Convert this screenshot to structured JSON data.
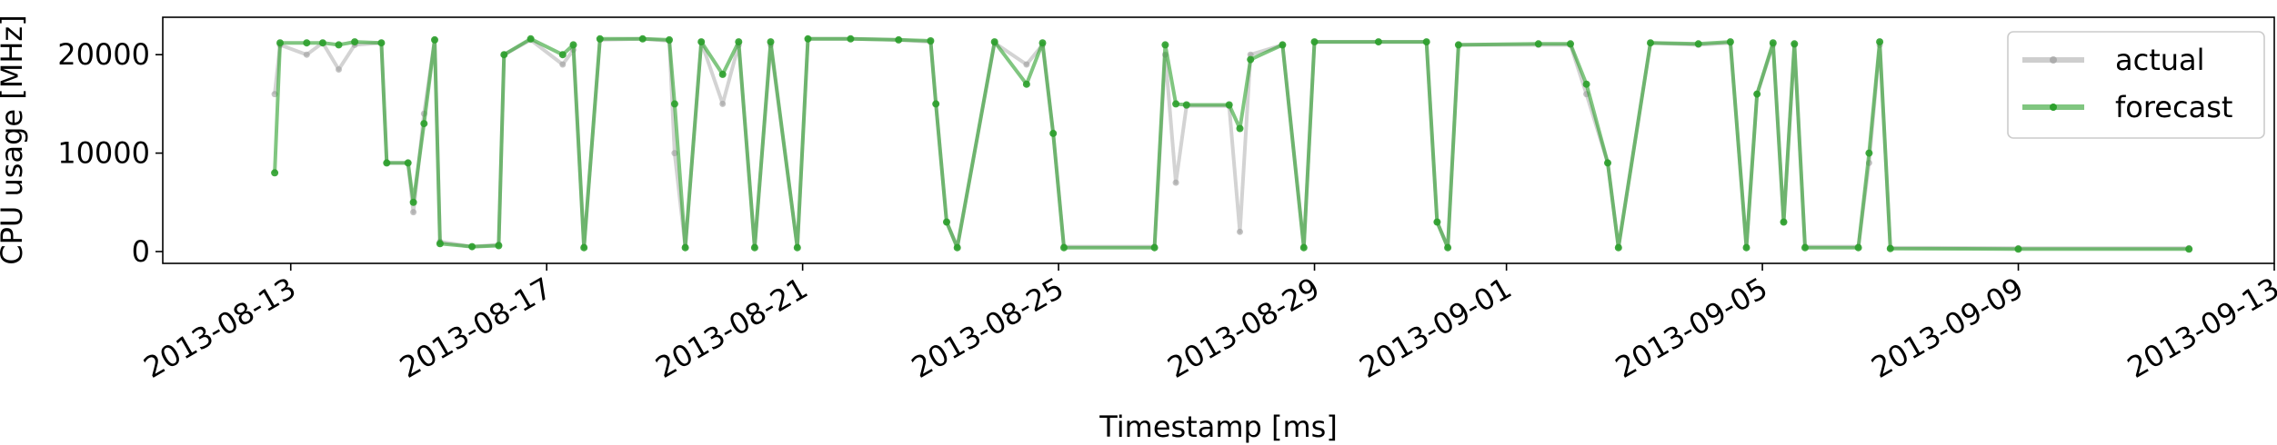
{
  "chart_data": {
    "type": "line",
    "xlabel": "Timestamp [ms]",
    "ylabel": "CPU usage [MHz]",
    "ylim": [
      -1200,
      23800
    ],
    "xlim": [
      "2013-08-11",
      "2013-09-13"
    ],
    "grid": false,
    "legend_position": "top-right",
    "yticks": [
      0,
      10000,
      20000
    ],
    "ytick_labels": [
      "0",
      "10000",
      "20000"
    ],
    "xticks": [
      "2013-08-13",
      "2013-08-17",
      "2013-08-21",
      "2013-08-25",
      "2013-08-29",
      "2013-09-01",
      "2013-09-05",
      "2013-09-09",
      "2013-09-13"
    ],
    "xtick_labels": [
      "2013-08-13",
      "2013-08-17",
      "2013-08-21",
      "2013-08-25",
      "2013-08-29",
      "2013-09-01",
      "2013-09-05",
      "2013-09-09",
      "2013-09-13"
    ],
    "series": [
      {
        "name": "actual",
        "color": "#9e9e9e",
        "points": [
          [
            "2013-08-12T18:00",
            16000
          ],
          [
            "2013-08-12T20:00",
            21000
          ],
          [
            "2013-08-13T06:00",
            20000
          ],
          [
            "2013-08-13T12:00",
            21200
          ],
          [
            "2013-08-13T18:00",
            18500
          ],
          [
            "2013-08-14T00:00",
            21000
          ],
          [
            "2013-08-14T10:00",
            21200
          ],
          [
            "2013-08-14T12:00",
            9000
          ],
          [
            "2013-08-14T20:00",
            9000
          ],
          [
            "2013-08-14T22:00",
            4000
          ],
          [
            "2013-08-15T02:00",
            14000
          ],
          [
            "2013-08-15T06:00",
            21500
          ],
          [
            "2013-08-15T08:00",
            1000
          ],
          [
            "2013-08-15T20:00",
            500
          ],
          [
            "2013-08-16T06:00",
            700
          ],
          [
            "2013-08-16T08:00",
            20000
          ],
          [
            "2013-08-16T18:00",
            21500
          ],
          [
            "2013-08-17T06:00",
            19000
          ],
          [
            "2013-08-17T10:00",
            20500
          ],
          [
            "2013-08-17T14:00",
            500
          ],
          [
            "2013-08-17T20:00",
            21500
          ],
          [
            "2013-08-18T12:00",
            21600
          ],
          [
            "2013-08-18T22:00",
            21400
          ],
          [
            "2013-08-19T00:00",
            10000
          ],
          [
            "2013-08-19T04:00",
            500
          ],
          [
            "2013-08-19T10:00",
            21300
          ],
          [
            "2013-08-19T18:00",
            15000
          ],
          [
            "2013-08-20T00:00",
            21000
          ],
          [
            "2013-08-20T06:00",
            500
          ],
          [
            "2013-08-20T12:00",
            21000
          ],
          [
            "2013-08-20T22:00",
            500
          ],
          [
            "2013-08-21T02:00",
            21600
          ],
          [
            "2013-08-21T18:00",
            21600
          ],
          [
            "2013-08-22T12:00",
            21500
          ],
          [
            "2013-08-23T00:00",
            21300
          ],
          [
            "2013-08-23T02:00",
            15000
          ],
          [
            "2013-08-23T06:00",
            3000
          ],
          [
            "2013-08-23T10:00",
            500
          ],
          [
            "2013-08-24T00:00",
            21200
          ],
          [
            "2013-08-24T12:00",
            19000
          ],
          [
            "2013-08-24T18:00",
            21000
          ],
          [
            "2013-08-24T22:00",
            12000
          ],
          [
            "2013-08-25T02:00",
            500
          ],
          [
            "2013-08-26T12:00",
            500
          ],
          [
            "2013-08-26T16:00",
            20000
          ],
          [
            "2013-08-26T20:00",
            7000
          ],
          [
            "2013-08-27T00:00",
            14800
          ],
          [
            "2013-08-27T16:00",
            14800
          ],
          [
            "2013-08-27T20:00",
            2000
          ],
          [
            "2013-08-28T00:00",
            20000
          ],
          [
            "2013-08-28T12:00",
            21000
          ],
          [
            "2013-08-28T20:00",
            500
          ],
          [
            "2013-08-29T00:00",
            21300
          ],
          [
            "2013-08-30T00:00",
            21300
          ],
          [
            "2013-08-30T18:00",
            21300
          ],
          [
            "2013-08-30T22:00",
            3000
          ],
          [
            "2013-08-31T02:00",
            500
          ],
          [
            "2013-08-31T06:00",
            21000
          ],
          [
            "2013-09-01T12:00",
            21000
          ],
          [
            "2013-09-02T00:00",
            21000
          ],
          [
            "2013-09-02T06:00",
            16000
          ],
          [
            "2013-09-02T14:00",
            9000
          ],
          [
            "2013-09-02T18:00",
            500
          ],
          [
            "2013-09-03T06:00",
            21200
          ],
          [
            "2013-09-04T00:00",
            21000
          ],
          [
            "2013-09-04T12:00",
            21200
          ],
          [
            "2013-09-04T18:00",
            500
          ],
          [
            "2013-09-04T22:00",
            16000
          ],
          [
            "2013-09-05T04:00",
            21000
          ],
          [
            "2013-09-05T08:00",
            3000
          ],
          [
            "2013-09-05T12:00",
            21000
          ],
          [
            "2013-09-05T16:00",
            500
          ],
          [
            "2013-09-06T12:00",
            500
          ],
          [
            "2013-09-06T16:00",
            9000
          ],
          [
            "2013-09-06T20:00",
            21000
          ],
          [
            "2013-09-07T00:00",
            400
          ],
          [
            "2013-09-09T00:00",
            350
          ],
          [
            "2013-09-11T16:00",
            350
          ]
        ]
      },
      {
        "name": "forecast",
        "color": "#2ca02c",
        "points": [
          [
            "2013-08-12T18:00",
            8000
          ],
          [
            "2013-08-12T20:00",
            21200
          ],
          [
            "2013-08-13T06:00",
            21200
          ],
          [
            "2013-08-13T12:00",
            21200
          ],
          [
            "2013-08-13T18:00",
            21000
          ],
          [
            "2013-08-14T00:00",
            21300
          ],
          [
            "2013-08-14T10:00",
            21200
          ],
          [
            "2013-08-14T12:00",
            9000
          ],
          [
            "2013-08-14T20:00",
            9000
          ],
          [
            "2013-08-14T22:00",
            5000
          ],
          [
            "2013-08-15T02:00",
            13000
          ],
          [
            "2013-08-15T06:00",
            21500
          ],
          [
            "2013-08-15T08:00",
            800
          ],
          [
            "2013-08-15T20:00",
            500
          ],
          [
            "2013-08-16T06:00",
            600
          ],
          [
            "2013-08-16T08:00",
            20000
          ],
          [
            "2013-08-16T18:00",
            21600
          ],
          [
            "2013-08-17T06:00",
            20000
          ],
          [
            "2013-08-17T10:00",
            21000
          ],
          [
            "2013-08-17T14:00",
            400
          ],
          [
            "2013-08-17T20:00",
            21600
          ],
          [
            "2013-08-18T12:00",
            21600
          ],
          [
            "2013-08-18T22:00",
            21500
          ],
          [
            "2013-08-19T00:00",
            15000
          ],
          [
            "2013-08-19T04:00",
            400
          ],
          [
            "2013-08-19T10:00",
            21300
          ],
          [
            "2013-08-19T18:00",
            18000
          ],
          [
            "2013-08-20T00:00",
            21300
          ],
          [
            "2013-08-20T06:00",
            400
          ],
          [
            "2013-08-20T12:00",
            21300
          ],
          [
            "2013-08-20T22:00",
            400
          ],
          [
            "2013-08-21T02:00",
            21600
          ],
          [
            "2013-08-21T18:00",
            21600
          ],
          [
            "2013-08-22T12:00",
            21500
          ],
          [
            "2013-08-23T00:00",
            21400
          ],
          [
            "2013-08-23T02:00",
            15000
          ],
          [
            "2013-08-23T06:00",
            3000
          ],
          [
            "2013-08-23T10:00",
            400
          ],
          [
            "2013-08-24T00:00",
            21300
          ],
          [
            "2013-08-24T12:00",
            17000
          ],
          [
            "2013-08-24T18:00",
            21200
          ],
          [
            "2013-08-24T22:00",
            12000
          ],
          [
            "2013-08-25T02:00",
            400
          ],
          [
            "2013-08-26T12:00",
            400
          ],
          [
            "2013-08-26T16:00",
            21000
          ],
          [
            "2013-08-26T20:00",
            15000
          ],
          [
            "2013-08-27T00:00",
            14900
          ],
          [
            "2013-08-27T16:00",
            14900
          ],
          [
            "2013-08-27T20:00",
            12500
          ],
          [
            "2013-08-28T00:00",
            19500
          ],
          [
            "2013-08-28T12:00",
            21000
          ],
          [
            "2013-08-28T20:00",
            400
          ],
          [
            "2013-08-29T00:00",
            21300
          ],
          [
            "2013-08-30T00:00",
            21300
          ],
          [
            "2013-08-30T18:00",
            21300
          ],
          [
            "2013-08-30T22:00",
            3000
          ],
          [
            "2013-08-31T02:00",
            400
          ],
          [
            "2013-08-31T06:00",
            21000
          ],
          [
            "2013-09-01T12:00",
            21100
          ],
          [
            "2013-09-02T00:00",
            21100
          ],
          [
            "2013-09-02T06:00",
            17000
          ],
          [
            "2013-09-02T14:00",
            9000
          ],
          [
            "2013-09-02T18:00",
            400
          ],
          [
            "2013-09-03T06:00",
            21200
          ],
          [
            "2013-09-04T00:00",
            21100
          ],
          [
            "2013-09-04T12:00",
            21300
          ],
          [
            "2013-09-04T18:00",
            400
          ],
          [
            "2013-09-04T22:00",
            16000
          ],
          [
            "2013-09-05T04:00",
            21200
          ],
          [
            "2013-09-05T08:00",
            3000
          ],
          [
            "2013-09-05T12:00",
            21100
          ],
          [
            "2013-09-05T16:00",
            400
          ],
          [
            "2013-09-06T12:00",
            400
          ],
          [
            "2013-09-06T16:00",
            10000
          ],
          [
            "2013-09-06T20:00",
            21300
          ],
          [
            "2013-09-07T00:00",
            300
          ],
          [
            "2013-09-09T00:00",
            250
          ],
          [
            "2013-09-11T16:00",
            250
          ]
        ]
      }
    ]
  }
}
